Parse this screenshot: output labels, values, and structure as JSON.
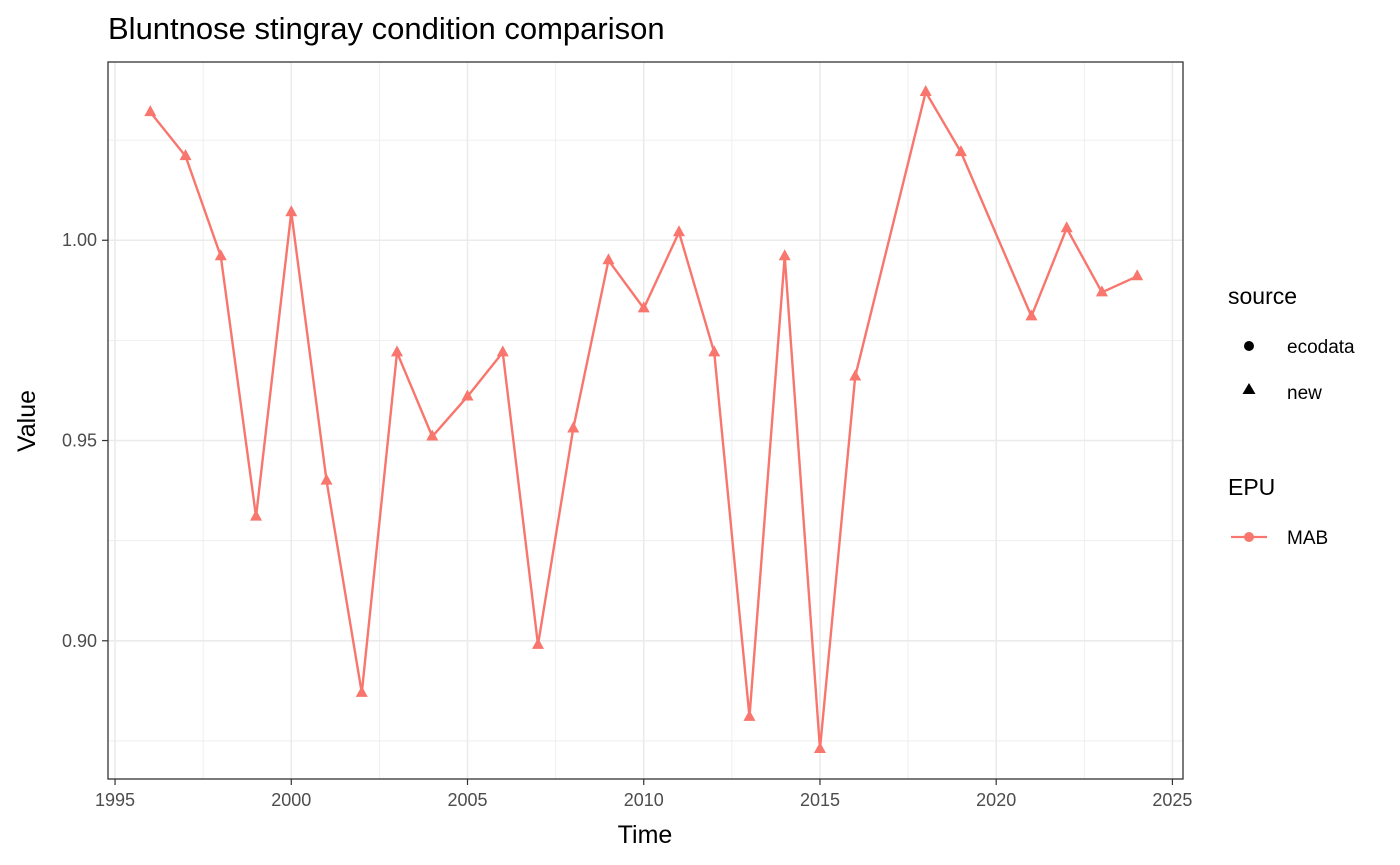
{
  "chart_data": {
    "type": "line",
    "title": "Bluntnose stingray condition comparison",
    "xlabel": "Time",
    "ylabel": "Value",
    "xlim": [
      1994.8,
      2025.3
    ],
    "ylim": [
      0.8655,
      1.0445
    ],
    "x_ticks": [
      1995,
      2000,
      2005,
      2010,
      2015,
      2020,
      2025
    ],
    "x_tick_labels": [
      "1995",
      "2000",
      "2005",
      "2010",
      "2015",
      "2020",
      "2025"
    ],
    "y_ticks": [
      0.9,
      0.95,
      1.0
    ],
    "y_tick_labels": [
      "0.90",
      "0.95",
      "1.00"
    ],
    "grid": true,
    "line_color": "#F8766D",
    "legend": {
      "position": "right",
      "source_title": "source",
      "source_entries": [
        {
          "label": "ecodata",
          "shape": "circle"
        },
        {
          "label": "new",
          "shape": "triangle"
        }
      ],
      "epu_title": "EPU",
      "epu_entries": [
        {
          "label": "MAB",
          "color": "#F8766D"
        }
      ]
    },
    "series": [
      {
        "name": "MAB",
        "source": "new",
        "x": [
          1996,
          1997,
          1998,
          1999,
          2000,
          2001,
          2002,
          2003,
          2004,
          2005,
          2006,
          2007,
          2008,
          2009,
          2010,
          2011,
          2012,
          2013,
          2014,
          2015,
          2016,
          2018,
          2019,
          2021,
          2022,
          2023,
          2024
        ],
        "y": [
          1.032,
          1.021,
          0.996,
          0.931,
          1.007,
          0.94,
          0.887,
          0.972,
          0.951,
          0.961,
          0.972,
          0.899,
          0.953,
          0.995,
          0.983,
          1.002,
          0.972,
          0.881,
          0.996,
          0.873,
          0.966,
          1.037,
          1.022,
          0.981,
          1.003,
          0.987,
          0.991
        ]
      }
    ]
  }
}
